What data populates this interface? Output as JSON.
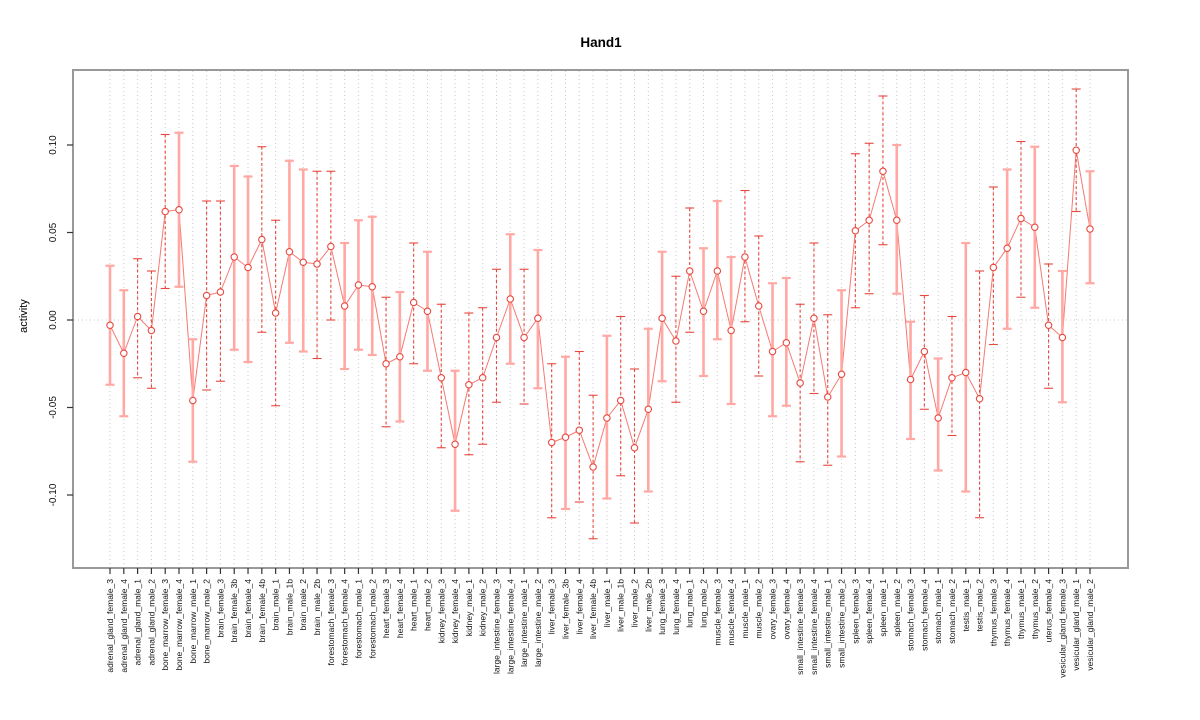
{
  "title": "Hand1",
  "colors": {
    "background": "#ffffff",
    "frame": "#999999",
    "grid": "#c9c9c9",
    "axis": "#333333",
    "point_stroke": "#e8483f",
    "point_fill": "#ffffff",
    "connector_line": "#f57a72",
    "error_bar_dashed": "#e8483f",
    "error_bar_solid": "#ffa8a4",
    "text": "#111111"
  },
  "chart_data": {
    "type": "scatter",
    "title": "Hand1",
    "xlabel": "",
    "ylabel": "activity",
    "point_marker": "open-circle",
    "legend": "none",
    "grid": "dotted vertical gridline per category; dotted horizontal line at y=0",
    "ylim": [
      -0.143,
      0.144
    ],
    "yticks": [
      -0.1,
      -0.05,
      0.0,
      0.05,
      0.1
    ],
    "ytick_labels": [
      "-0.10",
      "-0.05",
      "0.00",
      "0.05",
      "0.10"
    ],
    "categories": [
      "adrenal_gland_female_3",
      "adrenal_gland_female_4",
      "adrenal_gland_male_1",
      "adrenal_gland_male_2",
      "bone_marrow_female_3",
      "bone_marrow_female_4",
      "bone_marrow_male_1",
      "bone_marrow_male_2",
      "brain_female_3",
      "brain_female_3b",
      "brain_female_4",
      "brain_female_4b",
      "brain_male_1",
      "brain_male_1b",
      "brain_male_2",
      "brain_male_2b",
      "forestomach_female_3",
      "forestomach_female_4",
      "forestomach_male_1",
      "forestomach_male_2",
      "heart_female_3",
      "heart_female_4",
      "heart_male_1",
      "heart_male_2",
      "kidney_female_3",
      "kidney_female_4",
      "kidney_male_1",
      "kidney_male_2",
      "large_intestine_female_3",
      "large_intestine_female_4",
      "large_intestine_male_1",
      "large_intestine_male_2",
      "liver_female_3",
      "liver_female_3b",
      "liver_female_4",
      "liver_female_4b",
      "liver_male_1",
      "liver_male_1b",
      "liver_male_2",
      "liver_male_2b",
      "lung_female_3",
      "lung_female_4",
      "lung_male_1",
      "lung_male_2",
      "muscle_female_3",
      "muscle_female_4",
      "muscle_male_1",
      "muscle_male_2",
      "ovary_female_3",
      "ovary_female_4",
      "small_intestine_female_3",
      "small_intestine_female_4",
      "small_intestine_male_1",
      "small_intestine_male_2",
      "spleen_female_3",
      "spleen_female_4",
      "spleen_male_1",
      "spleen_male_2",
      "stomach_female_3",
      "stomach_female_4",
      "stomach_male_1",
      "stomach_male_2",
      "testis_male_1",
      "testis_male_2",
      "thymus_female_3",
      "thymus_female_4",
      "thymus_male_1",
      "thymus_male_2",
      "uterus_female_4",
      "vesicular_gland_female_3",
      "vesicular_gland_male_1",
      "vesicular_gland_male_2"
    ],
    "values": [
      -0.003,
      -0.019,
      0.002,
      -0.006,
      0.062,
      0.063,
      -0.046,
      0.014,
      0.016,
      0.036,
      0.03,
      0.046,
      0.004,
      0.039,
      0.033,
      0.032,
      0.042,
      0.008,
      0.02,
      0.019,
      -0.025,
      -0.021,
      0.01,
      0.005,
      -0.033,
      -0.071,
      -0.037,
      -0.033,
      -0.01,
      0.012,
      -0.01,
      0.001,
      -0.07,
      -0.067,
      -0.063,
      -0.084,
      -0.056,
      -0.046,
      -0.073,
      -0.051,
      0.001,
      -0.012,
      0.028,
      0.005,
      0.028,
      -0.006,
      0.036,
      0.008,
      -0.018,
      -0.013,
      -0.036,
      0.001,
      -0.044,
      -0.031,
      0.051,
      0.057,
      0.085,
      0.057,
      -0.034,
      -0.018,
      -0.056,
      -0.033,
      -0.03,
      -0.045,
      0.03,
      0.041,
      0.058,
      0.053,
      -0.003,
      -0.01,
      0.097,
      0.052
    ],
    "error_low": [
      -0.037,
      -0.055,
      -0.033,
      -0.039,
      0.018,
      0.019,
      -0.081,
      -0.04,
      -0.035,
      -0.017,
      -0.024,
      -0.007,
      -0.049,
      -0.013,
      -0.018,
      -0.022,
      0.0,
      -0.028,
      -0.017,
      -0.02,
      -0.061,
      -0.058,
      -0.025,
      -0.029,
      -0.073,
      -0.109,
      -0.077,
      -0.071,
      -0.047,
      -0.025,
      -0.048,
      -0.039,
      -0.113,
      -0.108,
      -0.104,
      -0.125,
      -0.102,
      -0.089,
      -0.116,
      -0.098,
      -0.035,
      -0.047,
      -0.007,
      -0.032,
      -0.011,
      -0.048,
      -0.001,
      -0.032,
      -0.055,
      -0.049,
      -0.081,
      -0.042,
      -0.083,
      -0.078,
      0.007,
      0.015,
      0.043,
      0.015,
      -0.068,
      -0.051,
      -0.086,
      -0.066,
      -0.098,
      -0.113,
      -0.014,
      -0.005,
      0.013,
      0.007,
      -0.039,
      -0.047,
      0.062,
      0.021
    ],
    "error_high": [
      0.031,
      0.017,
      0.035,
      0.028,
      0.106,
      0.107,
      -0.011,
      0.068,
      0.068,
      0.088,
      0.082,
      0.099,
      0.057,
      0.091,
      0.086,
      0.085,
      0.085,
      0.044,
      0.057,
      0.059,
      0.013,
      0.016,
      0.044,
      0.039,
      0.009,
      -0.029,
      0.004,
      0.007,
      0.029,
      0.049,
      0.029,
      0.04,
      -0.025,
      -0.021,
      -0.018,
      -0.043,
      -0.009,
      0.002,
      -0.028,
      -0.005,
      0.039,
      0.025,
      0.064,
      0.041,
      0.068,
      0.036,
      0.074,
      0.048,
      0.021,
      0.024,
      0.009,
      0.044,
      0.003,
      0.017,
      0.095,
      0.101,
      0.128,
      0.1,
      -0.001,
      0.014,
      -0.022,
      0.002,
      0.044,
      0.028,
      0.076,
      0.086,
      0.102,
      0.099,
      0.032,
      0.028,
      0.132,
      0.085
    ],
    "bar_styles": [
      "s",
      "s",
      "d",
      "d",
      "d",
      "s",
      "s",
      "d",
      "d",
      "s",
      "s",
      "d",
      "d",
      "s",
      "s",
      "d",
      "d",
      "s",
      "s",
      "s",
      "d",
      "s",
      "d",
      "s",
      "d",
      "s",
      "d",
      "d",
      "d",
      "s",
      "d",
      "s",
      "d",
      "s",
      "d",
      "d",
      "s",
      "d",
      "d",
      "s",
      "s",
      "d",
      "d",
      "s",
      "s",
      "s",
      "d",
      "d",
      "s",
      "s",
      "d",
      "d",
      "d",
      "s",
      "d",
      "d",
      "d",
      "s",
      "s",
      "d",
      "s",
      "d",
      "s",
      "d",
      "d",
      "s",
      "d",
      "s",
      "d",
      "s",
      "d",
      "s"
    ]
  }
}
